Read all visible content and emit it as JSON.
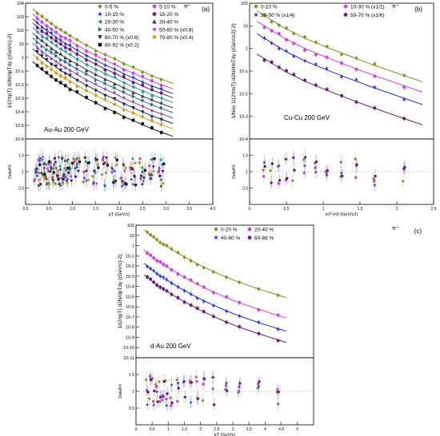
{
  "chart_data": [
    {
      "id": "a",
      "type": "scatter",
      "panel_label": "(a)",
      "particle": "π⁺",
      "system_label": "Au-Au 200 GeV",
      "ylabel": "1/(2πp_T) d2N/dp_Tdy ((GeV/c)^-2)",
      "ylabel_ratio": "Data/Fit",
      "xlabel": "p_T (GeV/c)",
      "xlim": [
        0,
        4.0
      ],
      "ylim_log": [
        -6,
        4
      ],
      "ratio_ylim": [
        0,
        2
      ],
      "x_ticks": [
        "0.0",
        "0.5",
        "1.0",
        "1.5",
        "2.0",
        "2.5",
        "3.0",
        "3.5",
        "4.0"
      ],
      "y_ticks": [
        "10^4",
        "10^3",
        "10^2",
        "10",
        "1",
        "10^-1",
        "10^-2",
        "10^-3",
        "10^-4",
        "10^-5",
        "10^-6"
      ],
      "ratio_y_ticks": [
        "0.5",
        "1",
        "1.5"
      ],
      "legend_position": "top-right",
      "series": [
        {
          "name": "0-5 %",
          "color": "#8a8a1a",
          "marker": "diamond"
        },
        {
          "name": "5-10 %",
          "color": "#d040e0",
          "marker": "circle"
        },
        {
          "name": "10-15 %",
          "color": "#1a2adc",
          "marker": "star"
        },
        {
          "name": "15-20 %",
          "color": "#6a1a7a",
          "marker": "circle"
        },
        {
          "name": "20-30 %",
          "color": "#1a9a8a",
          "marker": "triangle-left"
        },
        {
          "name": "30-40 %",
          "color": "#3a3a3a",
          "marker": "triangle"
        },
        {
          "name": "40-50 %",
          "color": "#2a6a9a",
          "marker": "triangle-right"
        },
        {
          "name": "50-60 % (x0.8)",
          "color": "#8a3ab0",
          "marker": "star"
        },
        {
          "name": "60-70 % (x0.6)",
          "color": "#202050",
          "marker": "triangle-down"
        },
        {
          "name": "70-80 % (x0.4)",
          "color": "#d0a020",
          "marker": "circle"
        },
        {
          "name": "80-92 % (x0.2)",
          "color": "#111111",
          "marker": "square"
        }
      ],
      "x_points": [
        0.25,
        0.35,
        0.45,
        0.55,
        0.65,
        0.75,
        0.85,
        0.95,
        1.1,
        1.3,
        1.5,
        1.7,
        1.9,
        2.1,
        2.3,
        2.5,
        2.7,
        2.9
      ],
      "top_log_values": [
        3.3,
        3.0,
        2.75,
        2.5,
        2.25,
        2.0,
        1.8,
        1.6,
        1.3,
        0.9,
        0.55,
        0.2,
        -0.1,
        -0.45,
        -0.75,
        -1.05,
        -1.35,
        -1.6
      ],
      "series_log_offsets": [
        0,
        -0.4,
        -0.75,
        -1.05,
        -1.4,
        -1.8,
        -2.15,
        -2.55,
        -2.95,
        -3.35,
        -3.9
      ]
    },
    {
      "id": "b",
      "type": "scatter",
      "panel_label": "(b)",
      "particle": "π⁺",
      "system_label": "Cu-Cu 200 GeV",
      "ylabel": "1/N_ev 1/(2πm_T) d2N/dm_Tdy ((GeV/c^2)^-2)",
      "ylabel_ratio": "Data/Fit",
      "xlabel": "m_T-m_0 (GeV/c^2)",
      "xlim": [
        0,
        2.5
      ],
      "ylim_log": [
        -4,
        2
      ],
      "ratio_ylim": [
        0,
        2
      ],
      "x_ticks": [
        "0",
        "0.5",
        "1",
        "1.5",
        "2",
        "2.5"
      ],
      "y_ticks": [
        "10^2",
        "10",
        "1",
        "10^-1",
        "10^-2",
        "10^-3",
        "10^-4"
      ],
      "ratio_y_ticks": [
        "0.5",
        "1",
        "1.5"
      ],
      "legend_position": "top",
      "series": [
        {
          "name": "0-10 %",
          "color": "#8a8a1a",
          "marker": "diamond"
        },
        {
          "name": "10-30 % (x1/2)",
          "color": "#d040e0",
          "marker": "circle"
        },
        {
          "name": "30-50 % (x1/4)",
          "color": "#1a2adc",
          "marker": "star"
        },
        {
          "name": "50-70 % (x1/6)",
          "color": "#6a1a7a",
          "marker": "circle"
        }
      ],
      "x_points": [
        0.2,
        0.3,
        0.4,
        0.5,
        0.6,
        0.75,
        0.9,
        1.05,
        1.25,
        1.45,
        1.7,
        2.1
      ],
      "top_log_values": [
        1.45,
        1.25,
        1.05,
        0.85,
        0.7,
        0.45,
        0.25,
        0.05,
        -0.2,
        -0.45,
        -0.75,
        -1.2
      ],
      "series_log_offsets": [
        0,
        -0.45,
        -1.0,
        -1.9
      ]
    },
    {
      "id": "c",
      "type": "scatter",
      "panel_label": "(c)",
      "particle": "π⁺",
      "system_label": "d-Au 200 GeV",
      "ylabel": "1/(2πp_T) d2N/dp_Tdy ((GeV/c)^-2)",
      "ylabel_ratio": "Data/Fit",
      "xlabel": "p_T (GeV/c)",
      "xlim": [
        0,
        5.5
      ],
      "ylim_log": [
        -11,
        2
      ],
      "ratio_ylim": [
        0,
        2
      ],
      "x_ticks": [
        "0",
        "0.5",
        "1",
        "1.5",
        "2",
        "2.5",
        "3",
        "3.5",
        "4",
        "4.5",
        "5"
      ],
      "y_ticks": [
        "10^2",
        "10",
        "1",
        "10^-1",
        "10^-2",
        "10^-3",
        "10^-4",
        "10^-5",
        "10^-6",
        "10^-7",
        "10^-8",
        "10^-9",
        "10^-10",
        "10^-11"
      ],
      "ratio_y_ticks": [
        "0.5",
        "1",
        "1.5"
      ],
      "legend_position": "top-right",
      "series": [
        {
          "name": "0-20 %",
          "color": "#8a8a1a",
          "marker": "diamond"
        },
        {
          "name": "20-40 %",
          "color": "#d040e0",
          "marker": "circle"
        },
        {
          "name": "40-60 %",
          "color": "#1a2adc",
          "marker": "star"
        },
        {
          "name": "60-88 %",
          "color": "#6a1a7a",
          "marker": "circle"
        }
      ],
      "x_points": [
        0.35,
        0.45,
        0.55,
        0.65,
        0.75,
        0.85,
        0.95,
        1.1,
        1.3,
        1.5,
        1.7,
        1.9,
        2.1,
        2.4,
        2.8,
        3.2,
        3.8,
        4.4
      ],
      "top_log_values": [
        1.3,
        1.05,
        0.8,
        0.55,
        0.35,
        0.15,
        -0.05,
        -0.35,
        -0.75,
        -1.1,
        -1.45,
        -1.8,
        -2.1,
        -2.55,
        -3.1,
        -3.6,
        -4.25,
        -4.85
      ],
      "series_log_offsets": [
        0,
        -2.0,
        -3.3,
        -4.4
      ]
    }
  ]
}
